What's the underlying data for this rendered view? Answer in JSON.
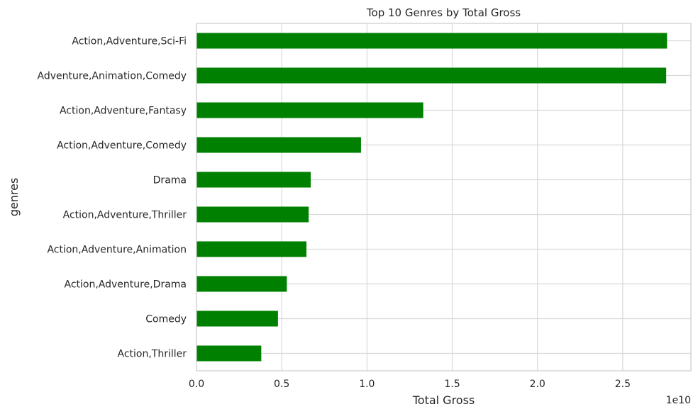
{
  "chart_data": {
    "type": "bar",
    "orientation": "horizontal",
    "title": "Top 10 Genres by Total Gross",
    "xlabel": "Total Gross",
    "ylabel": "genres",
    "x_offset_label": "1e10",
    "xlim": [
      0,
      2.9
    ],
    "x_ticks": [
      0.0,
      0.5,
      1.0,
      1.5,
      2.0,
      2.5
    ],
    "x_tick_labels": [
      "0.0",
      "0.5",
      "1.0",
      "1.5",
      "2.0",
      "2.5"
    ],
    "grid": true,
    "bar_color": "#008000",
    "categories": [
      "Action,Adventure,Sci-Fi",
      "Adventure,Animation,Comedy",
      "Action,Adventure,Fantasy",
      "Action,Adventure,Comedy",
      "Drama",
      "Action,Adventure,Thriller",
      "Action,Adventure,Animation",
      "Action,Adventure,Drama",
      "Comedy",
      "Action,Thriller"
    ],
    "values": [
      2.76,
      2.755,
      1.33,
      0.965,
      0.67,
      0.658,
      0.645,
      0.53,
      0.478,
      0.38
    ]
  }
}
